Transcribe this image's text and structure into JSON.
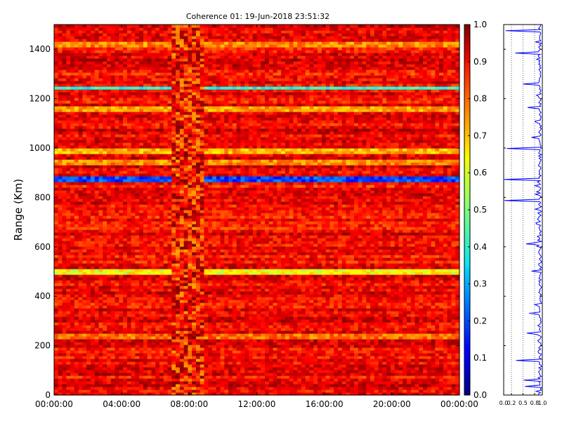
{
  "chart_data": [
    {
      "type": "heatmap",
      "title": "Coherence 01: 19-Jun-2018 23:51:32",
      "xlabel": "",
      "ylabel": "Range (Km)",
      "x_ticks": [
        "00:00:00",
        "04:00:00",
        "08:00:00",
        "12:00:00",
        "16:00:00",
        "20:00:00",
        "00:00:00"
      ],
      "x_range_hours": [
        0,
        24
      ],
      "y_ticks": [
        0,
        200,
        400,
        600,
        800,
        1000,
        1200,
        1400
      ],
      "ylim": [
        0,
        1500
      ],
      "colorbar": {
        "colormap": "jet",
        "range": [
          0.0,
          1.0
        ],
        "ticks": [
          "0.0",
          "0.1",
          "0.2",
          "0.3",
          "0.4",
          "0.5",
          "0.6",
          "0.7",
          "0.8",
          "0.9",
          "1.0"
        ]
      },
      "typical_value": 0.88,
      "gap_band_hours": [
        6.9,
        8.9
      ],
      "low_coherence_rows": [
        {
          "range_km": 875,
          "value": 0.2
        },
        {
          "range_km": 1245,
          "value": 0.4
        },
        {
          "range_km": 502,
          "value": 0.62
        },
        {
          "range_km": 1160,
          "value": 0.72
        },
        {
          "range_km": 985,
          "value": 0.7
        },
        {
          "range_km": 940,
          "value": 0.74
        },
        {
          "range_km": 235,
          "value": 0.76
        },
        {
          "range_km": 1420,
          "value": 0.74
        }
      ]
    },
    {
      "type": "line",
      "title": "",
      "xlabel": "",
      "ylabel": "",
      "x_ticks": [
        "0.0",
        "0.2",
        "0.5",
        "0.8",
        "1.0"
      ],
      "xlim": [
        0,
        1
      ],
      "ylim": [
        0,
        1500
      ],
      "gridlines_x": [
        0.2,
        0.5,
        0.8
      ],
      "profile_dips": [
        {
          "range_km": 1475,
          "value": 0.05
        },
        {
          "range_km": 1385,
          "value": 0.3
        },
        {
          "range_km": 1260,
          "value": 0.5
        },
        {
          "range_km": 1165,
          "value": 0.62
        },
        {
          "range_km": 1045,
          "value": 0.72
        },
        {
          "range_km": 1000,
          "value": 0.08
        },
        {
          "range_km": 875,
          "value": 0.0
        },
        {
          "range_km": 790,
          "value": 0.02
        },
        {
          "range_km": 610,
          "value": 0.58
        },
        {
          "range_km": 500,
          "value": 0.72
        },
        {
          "range_km": 330,
          "value": 0.66
        },
        {
          "range_km": 250,
          "value": 0.6
        },
        {
          "range_km": 140,
          "value": 0.32
        },
        {
          "range_km": 60,
          "value": 0.52
        },
        {
          "range_km": 35,
          "value": 0.55
        }
      ]
    }
  ]
}
